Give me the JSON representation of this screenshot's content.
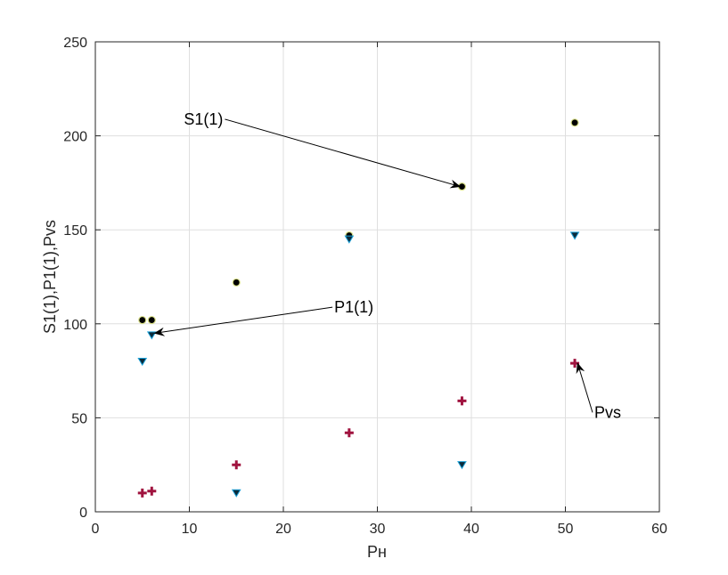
{
  "chart_data": {
    "type": "scatter",
    "xlabel": "Pн",
    "ylabel": "S1(1),P1(1),Pvs",
    "xlim": [
      0,
      60
    ],
    "ylim": [
      0,
      250
    ],
    "xticks": [
      0,
      10,
      20,
      30,
      40,
      50,
      60
    ],
    "yticks": [
      0,
      50,
      100,
      150,
      200,
      250
    ],
    "grid": true,
    "series": [
      {
        "marker": "circle",
        "color": "#000000",
        "edge_color": "#d9e08a",
        "points": [
          [
            5,
            102
          ],
          [
            6,
            102
          ],
          [
            15,
            122
          ],
          [
            27,
            147
          ],
          [
            39,
            173
          ],
          [
            51,
            207
          ]
        ]
      },
      {
        "marker": "triangle-down",
        "color": "#0b2a3a",
        "edge_color": "#1aa0d8",
        "points": [
          [
            5,
            80
          ],
          [
            6,
            94
          ],
          [
            15,
            10
          ],
          [
            27,
            145
          ],
          [
            39,
            25
          ],
          [
            51,
            147
          ]
        ]
      },
      {
        "marker": "plus",
        "color": "#a0133f",
        "points": [
          [
            5,
            10
          ],
          [
            6,
            11
          ],
          [
            15,
            25
          ],
          [
            27,
            42
          ],
          [
            39,
            59
          ],
          [
            51,
            79
          ]
        ]
      }
    ],
    "annotations": [
      {
        "text": "S1(1)",
        "text_at": [
          11.5,
          206
        ],
        "tip": [
          38.8,
          173
        ]
      },
      {
        "text": "P1(1)",
        "text_at": [
          27.5,
          106
        ],
        "tip": [
          6.3,
          95
        ]
      },
      {
        "text": "Pvs",
        "text_at": [
          54.5,
          50
        ],
        "tip": [
          51.3,
          79
        ]
      }
    ]
  }
}
